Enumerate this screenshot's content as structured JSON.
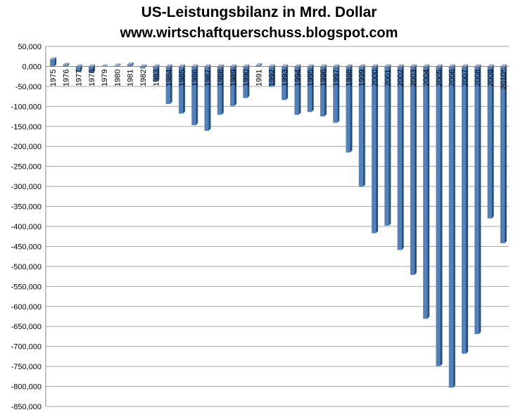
{
  "title": "US-Leistungsbilanz in Mrd. Dollar",
  "subtitle": "www.wirtschaftquerschuss.blogspot.com",
  "colors": {
    "bar": "#4f81bd",
    "bar_dark": "#2c4d75",
    "bar_light": "#8eb4e3",
    "grid": "#a6a6a6"
  },
  "chart_data": {
    "type": "bar",
    "title": "US-Leistungsbilanz in Mrd. Dollar",
    "xlabel": "",
    "ylabel": "",
    "ylim": [
      -850000,
      50000
    ],
    "grid": true,
    "legend": "none",
    "y_ticks": [
      50000,
      0,
      -50000,
      -100000,
      -150000,
      -200000,
      -250000,
      -300000,
      -350000,
      -400000,
      -450000,
      -500000,
      -550000,
      -600000,
      -650000,
      -700000,
      -750000,
      -800000,
      -850000
    ],
    "y_tick_labels": [
      "50,000",
      "0,000",
      "-50,000",
      "-100,000",
      "-150,000",
      "-200,000",
      "-250,000",
      "-300,000",
      "-350,000",
      "-400,000",
      "-450,000",
      "-500,000",
      "-550,000",
      "-600,000",
      "-650,000",
      "-700,000",
      "-750,000",
      "-800,000",
      "-850,000"
    ],
    "categories": [
      "1975",
      "1976",
      "1977",
      "1978",
      "1979",
      "1980",
      "1981",
      "1982",
      "1983",
      "1984",
      "1985",
      "1986",
      "1987",
      "1988",
      "1989",
      "1990",
      "1991",
      "1992",
      "1993",
      "1994",
      "1995",
      "1996",
      "1997",
      "1998",
      "1999",
      "2000",
      "2001",
      "2002",
      "2003",
      "2004",
      "2005",
      "2006",
      "2007",
      "2008",
      "2009",
      "2010*"
    ],
    "values": [
      18000,
      4000,
      -14000,
      -15000,
      -1000,
      2000,
      5000,
      -5000,
      -38000,
      -94000,
      -118000,
      -147000,
      -161000,
      -121000,
      -99000,
      -79000,
      3000,
      -51000,
      -84000,
      -121000,
      -114000,
      -125000,
      -141000,
      -215000,
      -301000,
      -417000,
      -398000,
      -459000,
      -521000,
      -631000,
      -749000,
      -803000,
      -718000,
      -669000,
      -380000,
      -442000
    ]
  }
}
